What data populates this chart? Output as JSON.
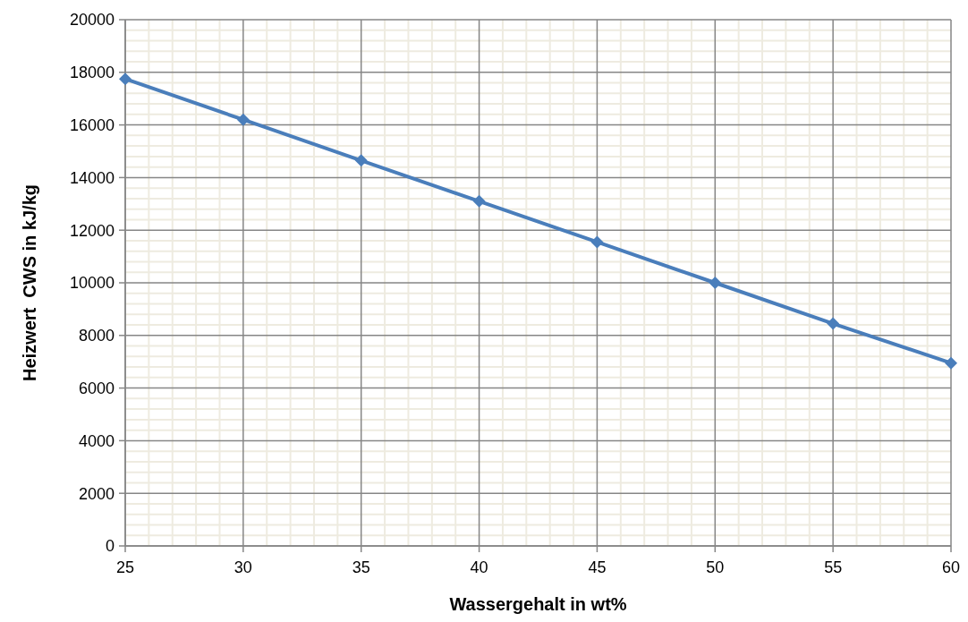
{
  "chart_data": {
    "type": "line",
    "xlabel": "Wassergehalt in wt%",
    "ylabel": "Heizwert  CWS in kJ/kg",
    "x": [
      25,
      30,
      35,
      40,
      45,
      50,
      55,
      60
    ],
    "series": [
      {
        "color": "#4a7ebb",
        "values": [
          17750,
          16200,
          14650,
          13100,
          11550,
          10000,
          8450,
          6950
        ]
      }
    ],
    "xlim": [
      25,
      60
    ],
    "xticks": [
      25,
      30,
      35,
      40,
      45,
      50,
      55,
      60
    ],
    "ylim": [
      0,
      20000
    ],
    "yticks": [
      0,
      2000,
      4000,
      6000,
      8000,
      10000,
      12000,
      14000,
      16000,
      18000,
      20000
    ],
    "grid": true,
    "marker": "diamond",
    "line_style": "solid"
  }
}
